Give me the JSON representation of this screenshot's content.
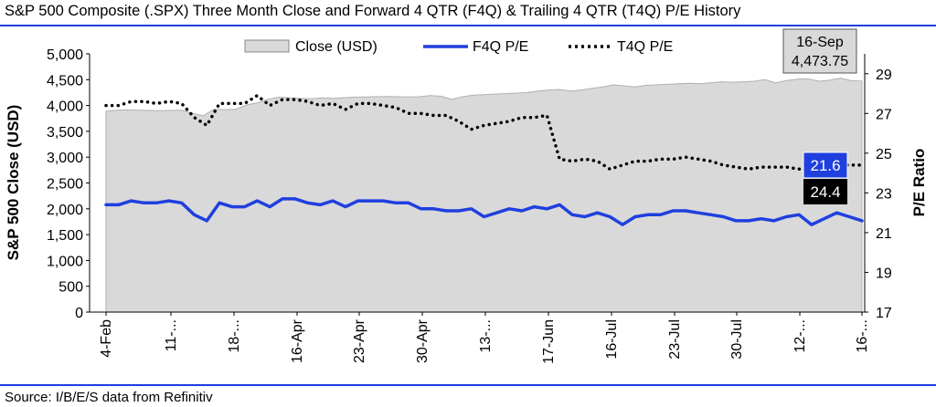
{
  "chart_data": {
    "type": "line",
    "title": "S&P 500 Composite (.SPX) Three Month Close and Forward 4 QTR (F4Q) & Trailing 4 QTR (T4Q) P/E History",
    "source": "Source: I/B/E/S data from Refinitiv",
    "ylabel_left": "S&P 500 Close (USD)",
    "ylabel_right": "P/E Ratio",
    "ylim_left": [
      0,
      5000
    ],
    "ylim_right": [
      17,
      30
    ],
    "yticks_left": [
      "0",
      "500",
      "1,000",
      "1,500",
      "2,000",
      "2,500",
      "3,000",
      "3,500",
      "4,000",
      "4,500",
      "5,000"
    ],
    "yticks_right": [
      "17",
      "19",
      "21",
      "23",
      "25",
      "27",
      "29"
    ],
    "xticks": [
      "4-Feb",
      "11-...",
      "18-...",
      "16-Apr",
      "23-Apr",
      "30-Apr",
      "13-...",
      "17-Jun",
      "16-Jul",
      "23-Jul",
      "30-Jul",
      "12-...",
      "16-..."
    ],
    "legend": [
      "Close (USD)",
      "F4Q P/E",
      "T4Q P/E"
    ],
    "colors": {
      "close_fill": "#d9d9d9",
      "f4q": "#1f3fdf",
      "t4q": "#000000",
      "title_rule": "#1f3fdf",
      "badge_f4q": "#1f3fdf",
      "badge_t4q": "#000000"
    },
    "series": [
      {
        "name": "Close (USD)",
        "axis": "left",
        "values": [
          3890,
          3910,
          3915,
          3910,
          3905,
          3900,
          3905,
          3910,
          3850,
          3800,
          3930,
          3920,
          3925,
          4010,
          4050,
          4120,
          4160,
          4150,
          4140,
          4130,
          4150,
          4140,
          4150,
          4160,
          4165,
          4170,
          4175,
          4170,
          4165,
          4170,
          4190,
          4180,
          4120,
          4170,
          4200,
          4210,
          4220,
          4230,
          4240,
          4250,
          4280,
          4300,
          4310,
          4280,
          4300,
          4330,
          4360,
          4400,
          4380,
          4360,
          4390,
          4400,
          4410,
          4420,
          4430,
          4420,
          4440,
          4460,
          4450,
          4460,
          4470,
          4500,
          4440,
          4480,
          4510,
          4520,
          4470,
          4490,
          4530,
          4480,
          4473.75
        ]
      },
      {
        "name": "F4Q P/E",
        "axis": "right",
        "values": [
          22.4,
          22.4,
          22.6,
          22.5,
          22.5,
          22.6,
          22.5,
          21.9,
          21.6,
          22.5,
          22.3,
          22.3,
          22.6,
          22.3,
          22.7,
          22.7,
          22.5,
          22.4,
          22.6,
          22.3,
          22.6,
          22.6,
          22.6,
          22.5,
          22.5,
          22.2,
          22.2,
          22.1,
          22.1,
          22.2,
          21.8,
          22.0,
          22.2,
          22.1,
          22.3,
          22.2,
          22.4,
          21.9,
          21.8,
          22.0,
          21.8,
          21.4,
          21.8,
          21.9,
          21.9,
          22.1,
          22.1,
          22.0,
          21.9,
          21.8,
          21.6,
          21.6,
          21.7,
          21.6,
          21.8,
          21.9,
          21.4,
          21.7,
          22.0,
          21.8,
          21.6
        ]
      },
      {
        "name": "T4Q P/E",
        "axis": "right",
        "values": [
          27.4,
          27.4,
          27.6,
          27.6,
          27.5,
          27.6,
          27.5,
          26.8,
          26.4,
          27.5,
          27.5,
          27.5,
          27.9,
          27.4,
          27.7,
          27.7,
          27.6,
          27.4,
          27.5,
          27.2,
          27.5,
          27.5,
          27.4,
          27.3,
          27.0,
          27.0,
          26.9,
          26.9,
          26.6,
          26.2,
          26.4,
          26.5,
          26.6,
          26.8,
          26.8,
          26.9,
          24.7,
          24.6,
          24.7,
          24.6,
          24.2,
          24.4,
          24.6,
          24.6,
          24.7,
          24.7,
          24.8,
          24.7,
          24.6,
          24.4,
          24.3,
          24.2,
          24.3,
          24.3,
          24.3,
          24.2,
          24.3,
          24.3,
          24.4,
          24.4,
          24.4
        ]
      }
    ],
    "callout": {
      "date": "16-Sep",
      "value": "4,473.75"
    },
    "badges": {
      "f4q": "21.6",
      "t4q": "24.4"
    }
  }
}
